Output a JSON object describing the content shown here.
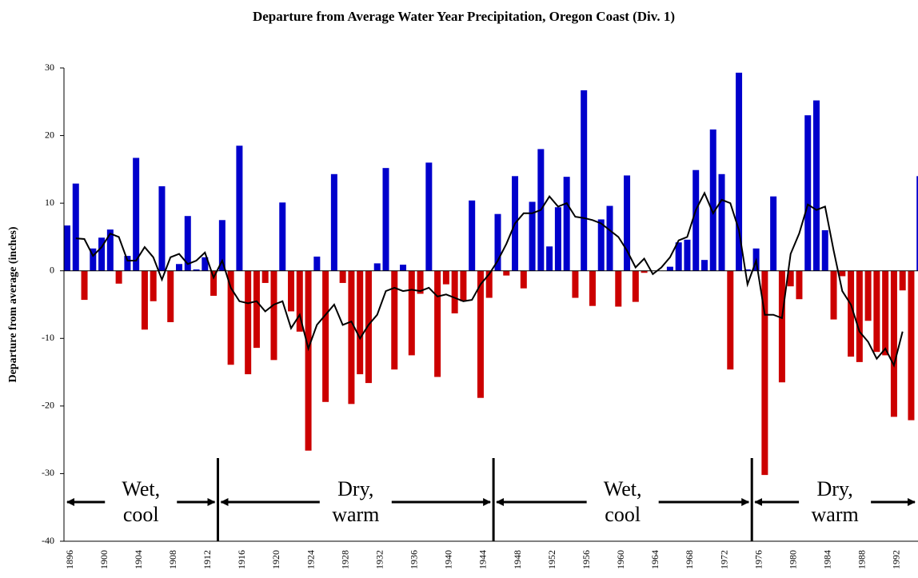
{
  "chart_data": {
    "type": "bar",
    "title": "Departure from Average Water Year Precipitation, Oregon Coast (Div. 1)",
    "y_label": "Departure from average (inches)",
    "categories": [
      "1896",
      null,
      null,
      null,
      "1900",
      null,
      null,
      null,
      "1904",
      null,
      null,
      null,
      "1908",
      null,
      null,
      null,
      "1912",
      null,
      null,
      null,
      "1916",
      null,
      null,
      null,
      "1920",
      null,
      null,
      null,
      "1924",
      null,
      null,
      null,
      "1928",
      null,
      null,
      null,
      "1932",
      null,
      null,
      null,
      "1936",
      null,
      null,
      null,
      "1940",
      null,
      null,
      null,
      "1944",
      null,
      null,
      null,
      "1948",
      null,
      null,
      null,
      "1952",
      null,
      null,
      null,
      "1956",
      null,
      null,
      null,
      "1960",
      null,
      null,
      null,
      "1964",
      null,
      null,
      null,
      "1968",
      null,
      null,
      null,
      "1972",
      null,
      null,
      null,
      "1976",
      null,
      null,
      null,
      "1980",
      null,
      null,
      null,
      "1984",
      null,
      null,
      null,
      "1988",
      null,
      null,
      null,
      "1992",
      null,
      null,
      null
    ],
    "values": [
      6.7,
      12.9,
      -4.3,
      3.3,
      4.9,
      6.1,
      -1.9,
      2.2,
      16.7,
      -8.7,
      -4.5,
      12.5,
      -7.6,
      1.0,
      8.1,
      0.2,
      2.0,
      -3.7,
      7.5,
      -13.9,
      18.5,
      -15.3,
      -11.4,
      -1.8,
      -13.2,
      10.1,
      -6.0,
      -9.0,
      -26.6,
      2.1,
      -19.4,
      14.3,
      -1.8,
      -19.7,
      -15.3,
      -16.6,
      1.1,
      15.2,
      -14.6,
      0.9,
      -12.5,
      -3.4,
      16.0,
      -15.7,
      -2.0,
      -6.3,
      -4.5,
      10.4,
      -18.8,
      -4.0,
      8.4,
      -0.7,
      14.0,
      -2.6,
      10.2,
      18.0,
      3.6,
      9.4,
      13.9,
      -4.0,
      26.7,
      -5.2,
      7.6,
      9.6,
      -5.3,
      14.1,
      -4.6,
      -0.3,
      0,
      0,
      0.6,
      4.2,
      4.6,
      14.9,
      1.6,
      20.9,
      14.3,
      -14.6,
      29.3,
      0.2,
      3.3,
      -30.2,
      11.0,
      -16.5,
      -2.3,
      -4.2,
      23.0,
      25.2,
      6.0,
      -7.2,
      -0.8,
      -12.7,
      -13.5,
      -7.4,
      -12.0,
      -12.5,
      -21.6,
      -2.9,
      -22.1,
      14.0
    ],
    "positive_color": "#0000cc",
    "negative_color": "#cc0000",
    "line": {
      "color": "#000000",
      "values": [
        null,
        4.8,
        4.7,
        2.2,
        3.5,
        5.5,
        5.0,
        1.5,
        1.5,
        3.5,
        2.0,
        -1.3,
        2.0,
        2.5,
        1.0,
        1.5,
        2.7,
        -1,
        1.5,
        -2.5,
        -4.5,
        -4.8,
        -4.5,
        -6,
        -5,
        -4.5,
        -8.5,
        -6.5,
        -11.5,
        -8,
        -6.5,
        -5,
        -8,
        -7.5,
        -10,
        -8,
        -6.5,
        -3,
        -2.5,
        -3,
        -2.8,
        -3,
        -2.5,
        -3.8,
        -3.5,
        -4,
        -4.5,
        -4.3,
        -2,
        -0.5,
        1.5,
        4,
        7,
        8.5,
        8.5,
        9,
        11,
        9.5,
        10,
        8,
        7.8,
        7.5,
        7,
        6,
        5,
        3,
        0.5,
        1.8,
        -0.5,
        0.5,
        2,
        4.5,
        5,
        9,
        11.5,
        8.5,
        10.5,
        10,
        6,
        -2,
        1.5,
        -6.5,
        -6.5,
        -7,
        2.5,
        5.5,
        9.8,
        9,
        9.5,
        3,
        -3,
        -5,
        -9,
        -10.5,
        -13,
        -11.5,
        -14,
        -9,
        null,
        null
      ]
    },
    "ylim": [
      -40,
      30
    ],
    "yticks": [
      30,
      20,
      10,
      0,
      -10,
      -20,
      -30,
      -40
    ],
    "regime_breaks": [
      1913.5,
      1945.5,
      1975.5
    ],
    "annotations": [
      [
        "Wet,",
        "cool"
      ],
      [
        "Dry,",
        "warm"
      ],
      [
        "Wet,",
        "cool"
      ],
      [
        "Dry,",
        "warm"
      ]
    ]
  }
}
